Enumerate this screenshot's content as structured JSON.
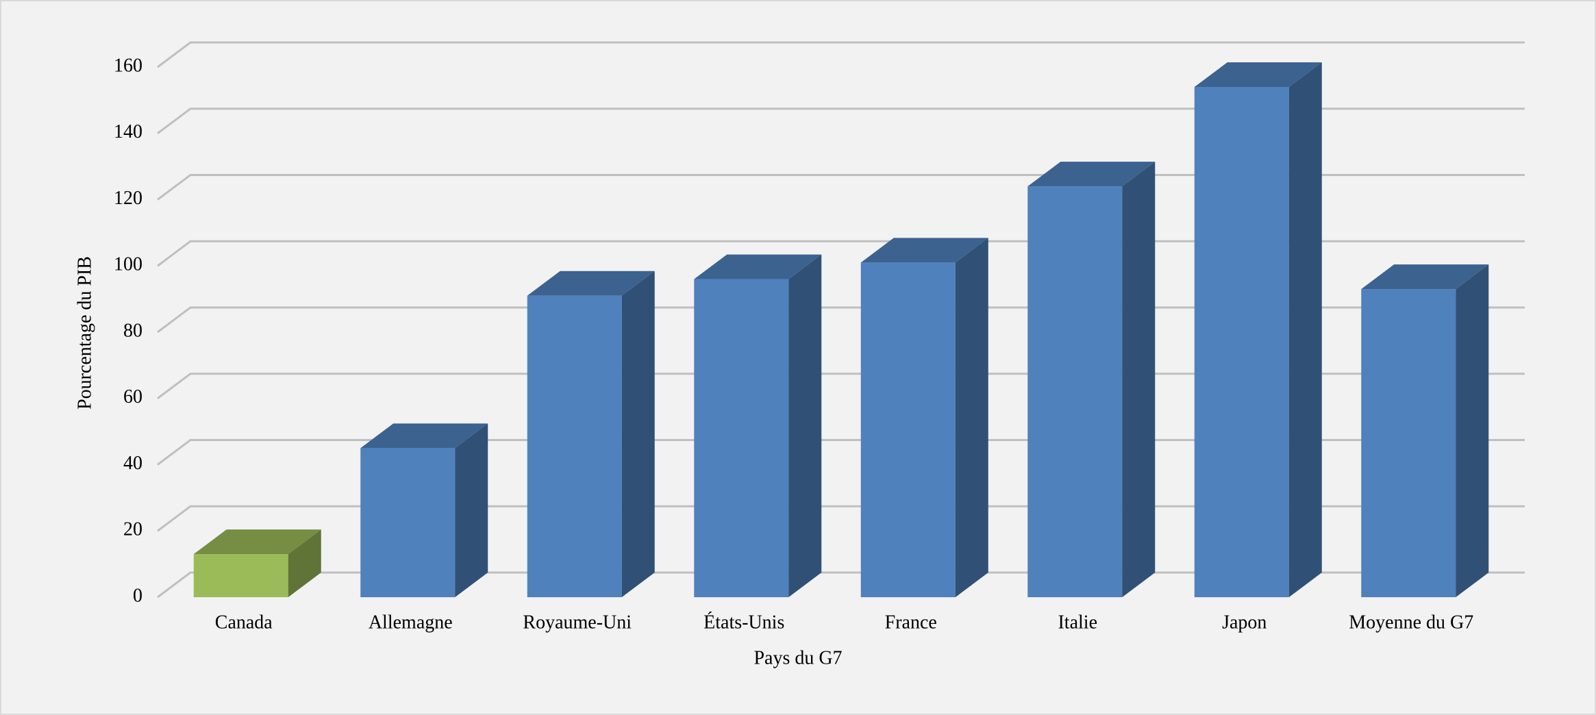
{
  "chart_data": {
    "type": "bar3d",
    "x_label": "Pays du G7",
    "y_label": "Pourcentage du PIB",
    "categories": [
      "Canada",
      "Allemagne",
      "Royaume-Uni",
      "États-Unis",
      "France",
      "Italie",
      "Japon",
      "Moyenne du G7"
    ],
    "values": [
      13,
      45,
      91,
      96,
      101,
      124,
      154,
      93
    ],
    "colors": [
      "#9bbb59",
      "#4f81bd",
      "#4f81bd",
      "#4f81bd",
      "#4f81bd",
      "#4f81bd",
      "#4f81bd",
      "#4f81bd"
    ],
    "ylim": [
      0,
      160
    ],
    "yticks": [
      0,
      20,
      40,
      60,
      80,
      100,
      120,
      140,
      160
    ],
    "grid": true
  }
}
